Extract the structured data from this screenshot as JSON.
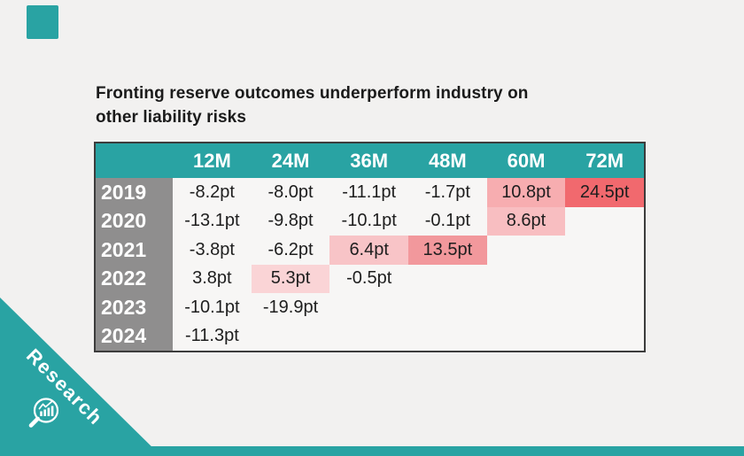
{
  "page": {
    "background": "#F2F1F0",
    "accent_teal": "#29A3A3"
  },
  "title": {
    "line1": "Fronting reserve outcomes underperform industry on",
    "line2": "other liability risks"
  },
  "logo": {
    "name": "brand-square",
    "color": "#29A3A3"
  },
  "ribbon": {
    "label": "Research",
    "icon": "magnifier-chart-icon",
    "background": "#29A3A3",
    "text_color": "#FFFFFF"
  },
  "footer": {
    "color": "#29A3A3"
  },
  "table": {
    "corner_label": "",
    "columns": [
      "12M",
      "24M",
      "36M",
      "48M",
      "60M",
      "72M"
    ],
    "rows": [
      {
        "year": "2019",
        "cells": [
          {
            "text": "-8.2pt"
          },
          {
            "text": "-8.0pt"
          },
          {
            "text": "-11.1pt"
          },
          {
            "text": "-1.7pt"
          },
          {
            "text": "10.8pt",
            "bg": "#F7ADB0"
          },
          {
            "text": "24.5pt",
            "bg": "#F1696E"
          }
        ]
      },
      {
        "year": "2020",
        "cells": [
          {
            "text": "-13.1pt"
          },
          {
            "text": "-9.8pt"
          },
          {
            "text": "-10.1pt"
          },
          {
            "text": "-0.1pt"
          },
          {
            "text": "8.6pt",
            "bg": "#F8BEC1"
          },
          {
            "text": ""
          }
        ]
      },
      {
        "year": "2021",
        "cells": [
          {
            "text": "-3.8pt"
          },
          {
            "text": "-6.2pt"
          },
          {
            "text": "6.4pt",
            "bg": "#F8C4C7"
          },
          {
            "text": "13.5pt",
            "bg": "#F2989C"
          },
          {
            "text": ""
          },
          {
            "text": ""
          }
        ]
      },
      {
        "year": "2022",
        "cells": [
          {
            "text": "3.8pt"
          },
          {
            "text": "5.3pt",
            "bg": "#FAD4D6"
          },
          {
            "text": "-0.5pt"
          },
          {
            "text": ""
          },
          {
            "text": ""
          },
          {
            "text": ""
          }
        ]
      },
      {
        "year": "2023",
        "cells": [
          {
            "text": "-10.1pt"
          },
          {
            "text": "-19.9pt"
          },
          {
            "text": ""
          },
          {
            "text": ""
          },
          {
            "text": ""
          },
          {
            "text": ""
          }
        ]
      },
      {
        "year": "2024",
        "cells": [
          {
            "text": "-11.3pt"
          },
          {
            "text": ""
          },
          {
            "text": ""
          },
          {
            "text": ""
          },
          {
            "text": ""
          },
          {
            "text": ""
          }
        ]
      }
    ],
    "colors": {
      "header_bg": "#29A3A3",
      "header_text": "#FFFFFF",
      "year_bg": "#8F8E8E",
      "year_text": "#FFFFFF",
      "body_bg": "#F7F6F5",
      "cell_text": "#1E1E1E",
      "border": "#3C3C3C"
    }
  },
  "chart_data": {
    "type": "heatmap",
    "title": "Fronting reserve outcomes underperform industry on other liability risks",
    "columns": [
      "12M",
      "24M",
      "36M",
      "48M",
      "60M",
      "72M"
    ],
    "rows": [
      "2019",
      "2020",
      "2021",
      "2022",
      "2023",
      "2024"
    ],
    "unit": "pt",
    "values": [
      [
        -8.2,
        -8.0,
        -11.1,
        -1.7,
        10.8,
        24.5
      ],
      [
        -13.1,
        -9.8,
        -10.1,
        -0.1,
        8.6,
        null
      ],
      [
        -3.8,
        -6.2,
        6.4,
        13.5,
        null,
        null
      ],
      [
        3.8,
        5.3,
        -0.5,
        null,
        null,
        null
      ],
      [
        -10.1,
        -19.9,
        null,
        null,
        null,
        null
      ],
      [
        -11.3,
        null,
        null,
        null,
        null,
        null
      ]
    ],
    "highlight_rule": "positive values shaded pink/red, intensity proportional to magnitude",
    "heat_colors": {
      "5.3": "#FAD4D6",
      "6.4": "#F8C4C7",
      "8.6": "#F8BEC1",
      "10.8": "#F7ADB0",
      "13.5": "#F2989C",
      "24.5": "#F1696E"
    }
  }
}
